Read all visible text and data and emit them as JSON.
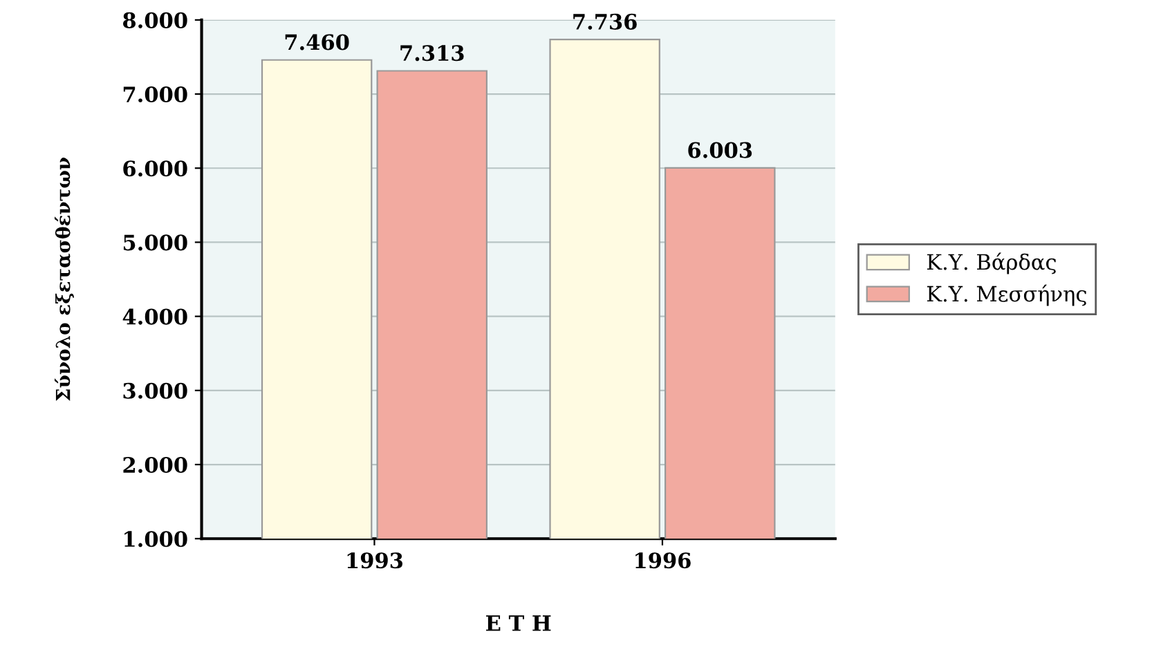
{
  "chart_data": {
    "type": "bar",
    "xlabel": "Ε Τ Η",
    "ylabel": "Σύνολο εξετασθέντων",
    "categories": [
      "1993",
      "1996"
    ],
    "series": [
      {
        "name": "Κ.Υ. Βάρδας",
        "color": "#fffbe2",
        "values": [
          7460,
          7736
        ],
        "value_labels": [
          "7.460",
          "7.736"
        ]
      },
      {
        "name": "Κ.Υ. Μεσσήνης",
        "color": "#f2aaa0",
        "values": [
          7313,
          6003
        ],
        "value_labels": [
          "7.313",
          "6.003"
        ]
      }
    ],
    "ylim": [
      1000,
      8000
    ],
    "yticks": [
      {
        "value": 1000,
        "label": "1.000"
      },
      {
        "value": 2000,
        "label": "2.000"
      },
      {
        "value": 3000,
        "label": "3.000"
      },
      {
        "value": 4000,
        "label": "4.000"
      },
      {
        "value": 5000,
        "label": "5.000"
      },
      {
        "value": 6000,
        "label": "6.000"
      },
      {
        "value": 7000,
        "label": "7.000"
      },
      {
        "value": 8000,
        "label": "8.000"
      }
    ],
    "grid": "y",
    "legend": "right"
  }
}
